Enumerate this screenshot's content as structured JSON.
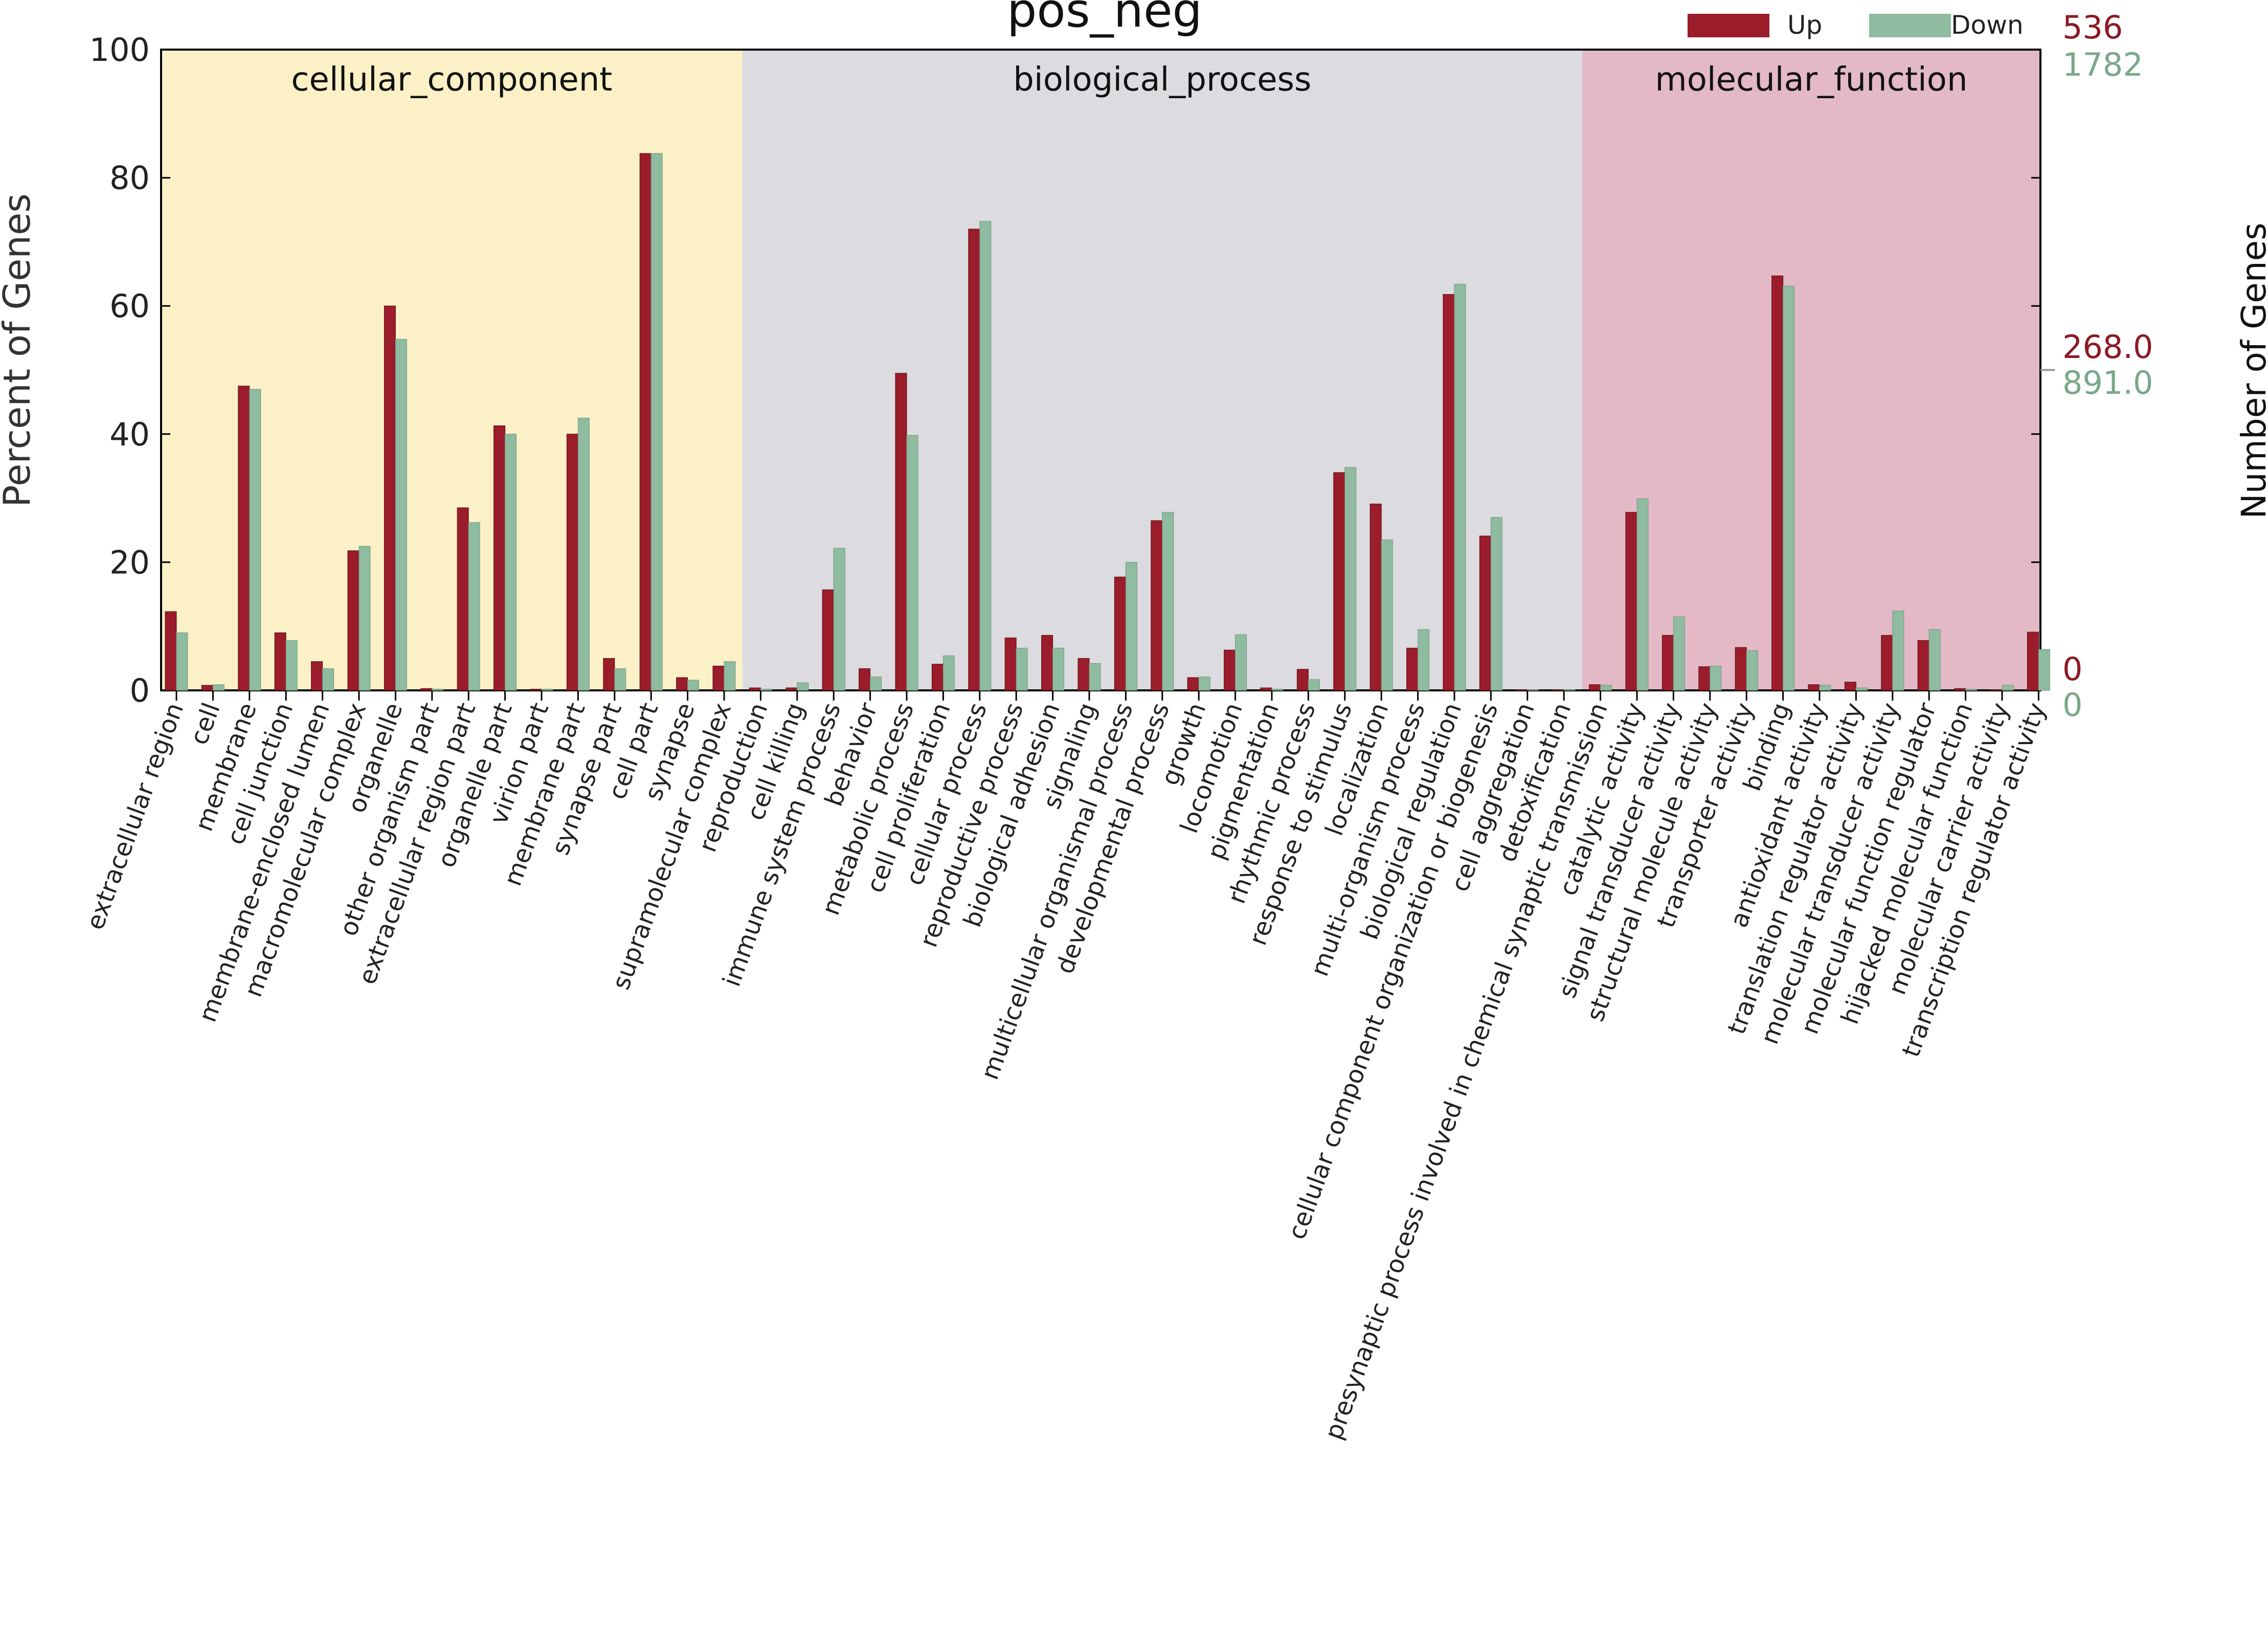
{
  "chart_data": {
    "type": "bar",
    "title": "pos_neg",
    "ylabel": "Percent of Genes",
    "y2label": "Number of Genes",
    "ylim": [
      0,
      100
    ],
    "yticks": [
      0,
      20,
      40,
      60,
      80,
      100
    ],
    "legend_position": "top-right",
    "colors": {
      "up": "#9b1c2a",
      "down": "#8fbba0",
      "right_up_text": "#8b1a24",
      "right_down_text": "#7aa88a"
    },
    "right_axis": {
      "up": [
        "536",
        "268.0",
        "0"
      ],
      "down": [
        "1782",
        "891.0",
        "0"
      ]
    },
    "groups": [
      {
        "name": "cellular_component",
        "start": 0,
        "end": 15,
        "color": "#fcf1c6"
      },
      {
        "name": "biological_process",
        "start": 16,
        "end": 38,
        "color": "#dcdbdf"
      },
      {
        "name": "molecular_function",
        "start": 39,
        "end": 50,
        "color": "#e3b9c6"
      }
    ],
    "categories": [
      "extracellular region",
      "cell",
      "membrane",
      "cell junction",
      "membrane-enclosed lumen",
      "macromolecular complex",
      "organelle",
      "other organism part",
      "extracellular region part",
      "organelle part",
      "virion part",
      "membrane part",
      "synapse part",
      "cell part",
      "synapse",
      "supramolecular complex",
      "reproduction",
      "cell killing",
      "immune system process",
      "behavior",
      "metabolic process",
      "cell proliferation",
      "cellular process",
      "reproductive process",
      "biological adhesion",
      "signaling",
      "multicellular organismal process",
      "developmental process",
      "growth",
      "locomotion",
      "pigmentation",
      "rhythmic process",
      "response to stimulus",
      "localization",
      "multi-organism process",
      "biological regulation",
      "cellular component organization or biogenesis",
      "cell aggregation",
      "detoxification",
      "presynaptic process involved in chemical synaptic transmission",
      "catalytic activity",
      "signal transducer activity",
      "structural molecule activity",
      "transporter activity",
      "binding",
      "antioxidant activity",
      "translation regulator activity",
      "molecular transducer activity",
      "molecular function regulator",
      "hijacked molecular function",
      "molecular carrier activity",
      "transcription regulator activity"
    ],
    "series": [
      {
        "name": "Up",
        "values": [
          12.3,
          0.8,
          47.5,
          9.0,
          4.5,
          21.8,
          60.0,
          0.3,
          28.5,
          41.3,
          0.2,
          40.0,
          5.0,
          83.8,
          2.0,
          3.8,
          0.4,
          0.4,
          15.7,
          3.4,
          49.5,
          4.1,
          72.0,
          8.2,
          8.6,
          5.0,
          17.7,
          26.5,
          2.0,
          6.3,
          0.4,
          3.3,
          34.0,
          29.1,
          6.6,
          61.8,
          24.1,
          0.1,
          0.1,
          0.9,
          27.8,
          8.6,
          3.7,
          6.7,
          64.7,
          0.9,
          1.3,
          8.6,
          7.8,
          0.3,
          0.1,
          9.1
        ]
      },
      {
        "name": "Down",
        "values": [
          9.0,
          0.9,
          47.0,
          7.8,
          3.4,
          22.5,
          54.8,
          0.2,
          26.2,
          40.0,
          0.2,
          42.5,
          3.4,
          83.8,
          1.6,
          4.5,
          0.2,
          1.2,
          22.2,
          2.1,
          39.8,
          5.4,
          73.2,
          6.6,
          6.6,
          4.2,
          20.0,
          27.8,
          2.1,
          8.7,
          0.2,
          1.7,
          34.8,
          23.5,
          9.5,
          63.4,
          27.0,
          0.1,
          0.1,
          0.8,
          29.9,
          11.5,
          3.8,
          6.2,
          63.1,
          0.8,
          0.4,
          12.4,
          9.5,
          0.2,
          0.8,
          6.4
        ]
      }
    ]
  }
}
